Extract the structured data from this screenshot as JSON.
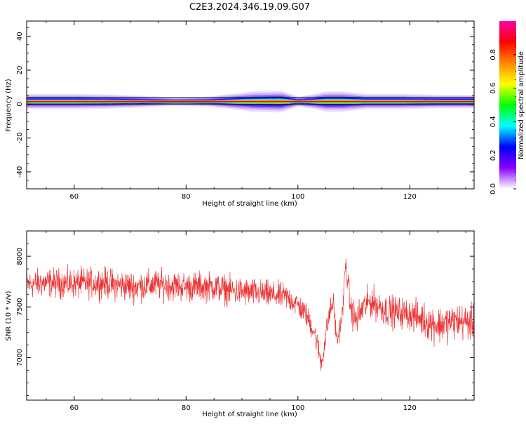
{
  "figure_title": "C2E3.2024.346.19.09.G07",
  "chart_data": [
    {
      "type": "heatmap",
      "title": "",
      "xlabel": "Height of straight line (km)",
      "ylabel": "Frequency (Hz)",
      "xlim": [
        51.5,
        131.5
      ],
      "ylim": [
        -50,
        49
      ],
      "x_ticks": [
        60,
        80,
        100,
        120
      ],
      "x_tick_labels": [
        "60",
        "80",
        "100",
        "120"
      ],
      "y_ticks": [
        -40,
        -20,
        0,
        20,
        40
      ],
      "y_tick_labels": [
        "-40",
        "-20",
        "0",
        "20",
        "40"
      ],
      "grid": false,
      "colorbar": {
        "label": "Normalized spectral amplitude",
        "range": [
          0,
          1
        ],
        "ticks": [
          0.0,
          0.2,
          0.4,
          0.6,
          0.8
        ],
        "tick_labels": [
          "0.0",
          "0.2",
          "0.4",
          "0.6",
          "0.8"
        ],
        "colormap": [
          "#ffffff",
          "#8800ff",
          "#0000ff",
          "#00ffff",
          "#00ff00",
          "#ffff00",
          "#ff8800",
          "#ff0000",
          "#ff00aa"
        ]
      },
      "signal": {
        "center_hz": 1.5,
        "core_halfwidth_hz": 0.9,
        "spread": [
          {
            "x": 51.5,
            "hz": 4.5
          },
          {
            "x": 60,
            "hz": 4.5
          },
          {
            "x": 66,
            "hz": 4.2
          },
          {
            "x": 72,
            "hz": 3.5
          },
          {
            "x": 78,
            "hz": 2.5
          },
          {
            "x": 84,
            "hz": 3.0
          },
          {
            "x": 88,
            "hz": 4.5
          },
          {
            "x": 92,
            "hz": 6.0
          },
          {
            "x": 97,
            "hz": 6.5
          },
          {
            "x": 100,
            "hz": 3.0
          },
          {
            "x": 103,
            "hz": 4.5
          },
          {
            "x": 105,
            "hz": 6.0
          },
          {
            "x": 108,
            "hz": 6.0
          },
          {
            "x": 112,
            "hz": 4.5
          },
          {
            "x": 118,
            "hz": 4.5
          },
          {
            "x": 125,
            "hz": 4.0
          },
          {
            "x": 131.5,
            "hz": 4.0
          }
        ]
      }
    },
    {
      "type": "line",
      "title": "",
      "xlabel": "Height of straight line (km)",
      "ylabel": "SNR (10 * v/v)",
      "xlim": [
        51.5,
        131.5
      ],
      "ylim": [
        6580,
        8250
      ],
      "x_ticks": [
        60,
        80,
        100,
        120
      ],
      "x_tick_labels": [
        "60",
        "80",
        "100",
        "120"
      ],
      "y_ticks": [
        7000,
        7500,
        8000
      ],
      "y_tick_labels": [
        "7000",
        "7500",
        "8000"
      ],
      "grid": false,
      "series": [
        {
          "color": "#ee3333",
          "trend": {
            "x": [
              51.5,
              55,
              60,
              65,
              70,
              75,
              80,
              85,
              88,
              92,
              95,
              98,
              100,
              101.5,
              103,
              104.2,
              105.5,
              106.3,
              107,
              108,
              108.5,
              109.5,
              110.5,
              111.5,
              113,
              116,
              120,
              123,
              125,
              128,
              131.5
            ],
            "y": [
              7720,
              7740,
              7730,
              7740,
              7700,
              7720,
              7700,
              7700,
              7660,
              7640,
              7620,
              7600,
              7520,
              7420,
              7250,
              6940,
              7400,
              7560,
              7150,
              7450,
              7930,
              7470,
              7360,
              7480,
              7560,
              7460,
              7430,
              7360,
              7320,
              7360,
              7340
            ]
          },
          "noise_amplitude": {
            "x": [
              51.5,
              70,
              90,
              98,
              103,
              106,
              108,
              110,
              120,
              124,
              131.5
            ],
            "y": [
              130,
              140,
              130,
              120,
              110,
              110,
              90,
              150,
              140,
              170,
              160
            ]
          }
        }
      ]
    }
  ]
}
